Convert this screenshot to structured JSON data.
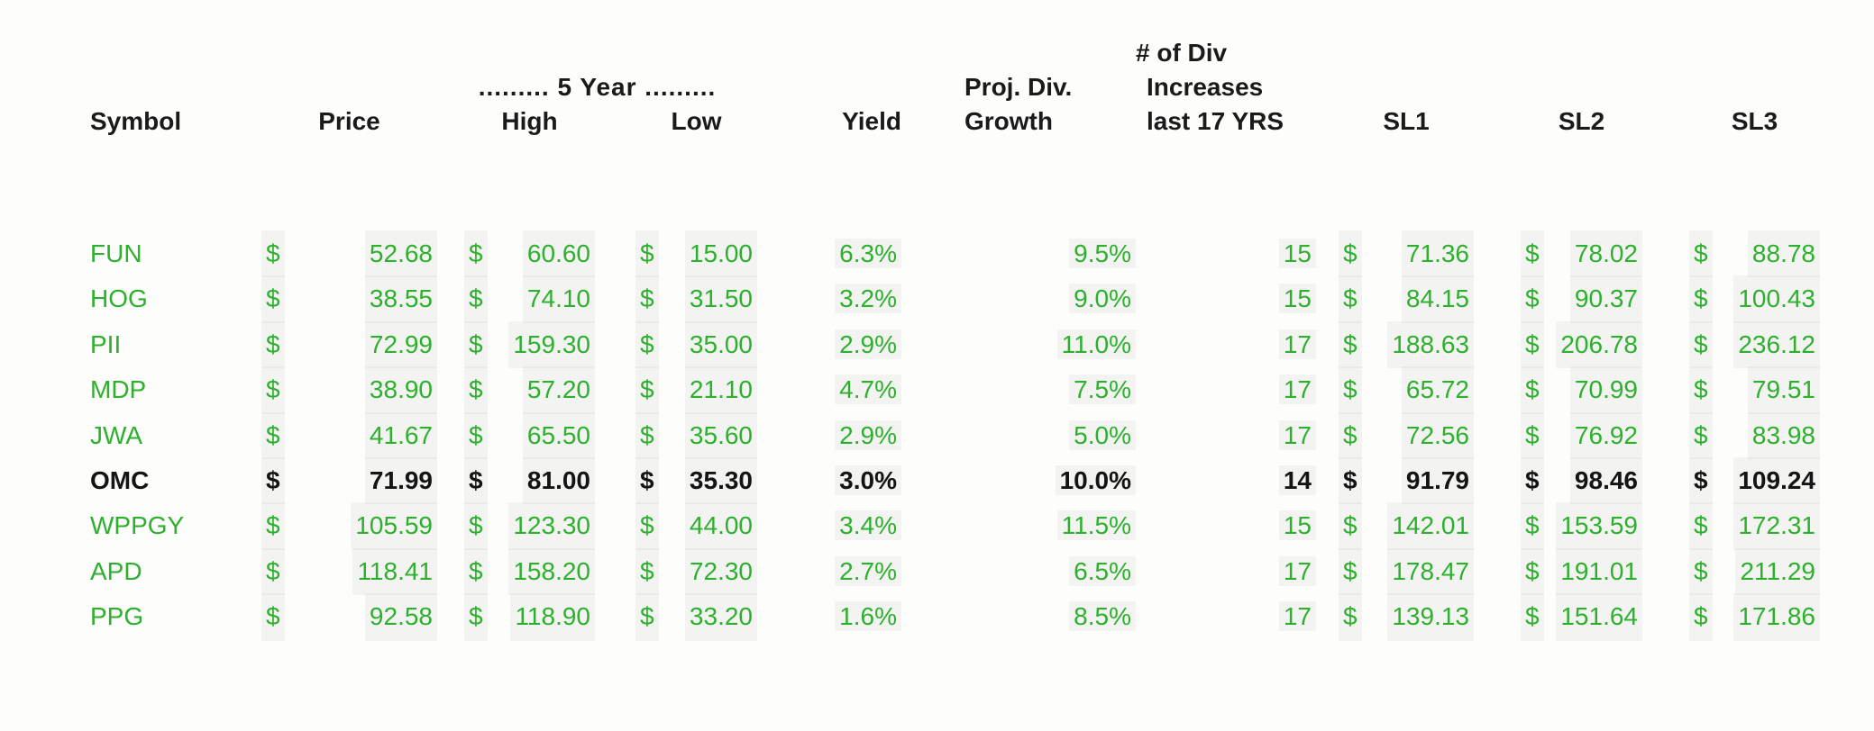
{
  "document": {
    "type": "scanned dividend stock watchlist table"
  },
  "colors": {
    "green_text": "#2db02d",
    "black_text": "#141414",
    "background": "#fdfdfb"
  },
  "table": {
    "currency_symbol": "$",
    "headers": {
      "symbol": "Symbol",
      "price": "Price",
      "five_year_group": "......... 5 Year .........",
      "high": "High",
      "low": "Low",
      "yield": "Yield",
      "proj_div_line1": "Proj. Div.",
      "growth": "Growth",
      "div_inc_line1": "# of Div",
      "div_inc_line2": "Increases",
      "div_inc_line3": "last 17 YRS",
      "sl1": "SL1",
      "sl2": "SL2",
      "sl3": "SL3"
    },
    "rows": [
      {
        "symbol": "FUN",
        "price": "52.68",
        "high": "60.60",
        "low": "15.00",
        "yield": "6.3%",
        "growth": "9.5%",
        "increases": "15",
        "sl1": "71.36",
        "sl2": "78.02",
        "sl3": "88.78",
        "highlight": false
      },
      {
        "symbol": "HOG",
        "price": "38.55",
        "high": "74.10",
        "low": "31.50",
        "yield": "3.2%",
        "growth": "9.0%",
        "increases": "15",
        "sl1": "84.15",
        "sl2": "90.37",
        "sl3": "100.43",
        "highlight": false
      },
      {
        "symbol": "PII",
        "price": "72.99",
        "high": "159.30",
        "low": "35.00",
        "yield": "2.9%",
        "growth": "11.0%",
        "increases": "17",
        "sl1": "188.63",
        "sl2": "206.78",
        "sl3": "236.12",
        "highlight": false
      },
      {
        "symbol": "MDP",
        "price": "38.90",
        "high": "57.20",
        "low": "21.10",
        "yield": "4.7%",
        "growth": "7.5%",
        "increases": "17",
        "sl1": "65.72",
        "sl2": "70.99",
        "sl3": "79.51",
        "highlight": false
      },
      {
        "symbol": "JWA",
        "price": "41.67",
        "high": "65.50",
        "low": "35.60",
        "yield": "2.9%",
        "growth": "5.0%",
        "increases": "17",
        "sl1": "72.56",
        "sl2": "76.92",
        "sl3": "83.98",
        "highlight": false
      },
      {
        "symbol": "OMC",
        "price": "71.99",
        "high": "81.00",
        "low": "35.30",
        "yield": "3.0%",
        "growth": "10.0%",
        "increases": "14",
        "sl1": "91.79",
        "sl2": "98.46",
        "sl3": "109.24",
        "highlight": true
      },
      {
        "symbol": "WPPGY",
        "price": "105.59",
        "high": "123.30",
        "low": "44.00",
        "yield": "3.4%",
        "growth": "11.5%",
        "increases": "15",
        "sl1": "142.01",
        "sl2": "153.59",
        "sl3": "172.31",
        "highlight": false
      },
      {
        "symbol": "APD",
        "price": "118.41",
        "high": "158.20",
        "low": "72.30",
        "yield": "2.7%",
        "growth": "6.5%",
        "increases": "17",
        "sl1": "178.47",
        "sl2": "191.01",
        "sl3": "211.29",
        "highlight": false
      },
      {
        "symbol": "PPG",
        "price": "92.58",
        "high": "118.90",
        "low": "33.20",
        "yield": "1.6%",
        "growth": "8.5%",
        "increases": "17",
        "sl1": "139.13",
        "sl2": "151.64",
        "sl3": "171.86",
        "highlight": false
      }
    ]
  }
}
